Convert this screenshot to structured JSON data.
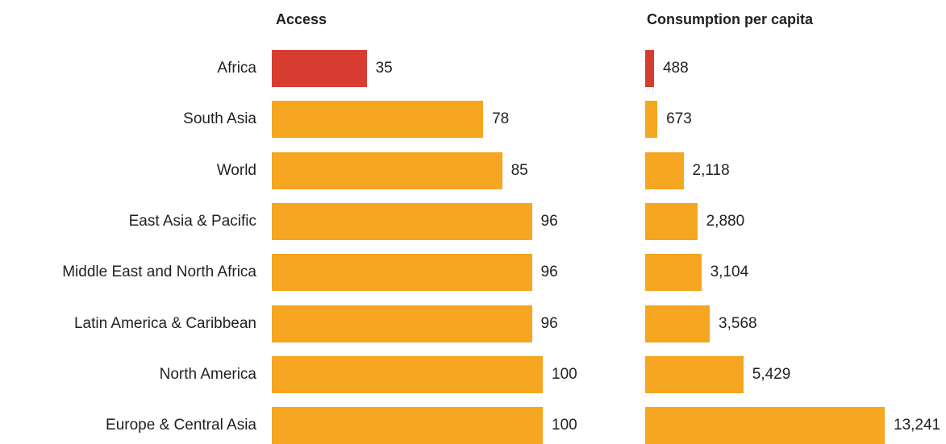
{
  "colors": {
    "highlight": "#d63c2f",
    "default": "#f6a620"
  },
  "chart_data": [
    {
      "type": "bar",
      "orientation": "horizontal",
      "title": "Access",
      "categories": [
        "Africa",
        "South Asia",
        "World",
        "East Asia & Pacific",
        "Middle East and North Africa",
        "Latin America & Caribbean",
        "North America",
        "Europe & Central Asia"
      ],
      "values": [
        35,
        78,
        85,
        96,
        96,
        96,
        100,
        100
      ],
      "value_labels": [
        "35",
        "78",
        "85",
        "96",
        "96",
        "96",
        "100",
        "100"
      ],
      "xlim": [
        0,
        100
      ],
      "highlight": "Africa",
      "grid": false
    },
    {
      "type": "bar",
      "orientation": "horizontal",
      "title": "Consumption per capita",
      "categories": [
        "Africa",
        "South Asia",
        "World",
        "East Asia & Pacific",
        "Middle East and North Africa",
        "Latin America & Caribbean",
        "North America",
        "Europe & Central Asia"
      ],
      "values": [
        488,
        673,
        2118,
        2880,
        3104,
        3568,
        5429,
        13241
      ],
      "value_labels": [
        "488",
        "673",
        "2,118",
        "2,880",
        "3,104",
        "3,568",
        "5,429",
        "13,241"
      ],
      "xlim": [
        0,
        13241
      ],
      "highlight": "Africa",
      "grid": false
    }
  ]
}
